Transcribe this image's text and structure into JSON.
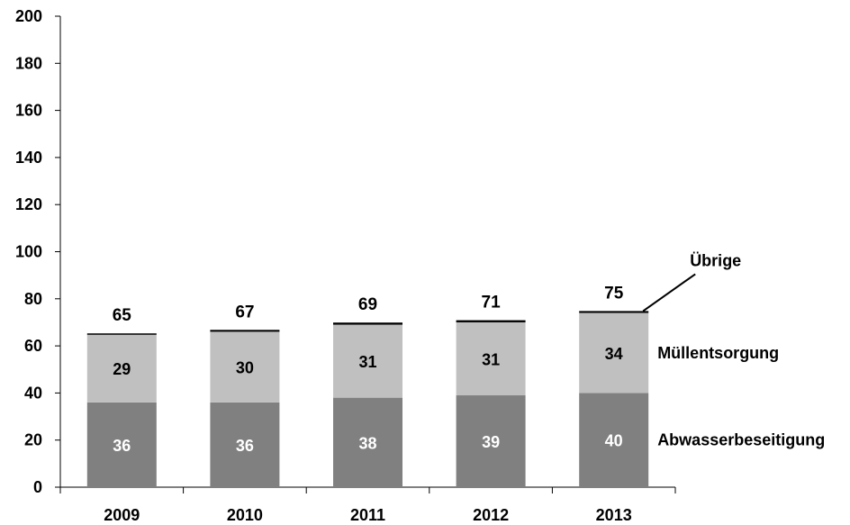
{
  "chart_data": {
    "type": "bar",
    "stacked": true,
    "categories": [
      "2009",
      "2010",
      "2011",
      "2012",
      "2013"
    ],
    "series": [
      {
        "name": "Abwasserbeseitigung",
        "values": [
          36,
          36,
          38,
          39,
          40
        ],
        "color": "#808080",
        "label_color": "#ffffff",
        "labels": [
          "36",
          "36",
          "38",
          "39",
          "40"
        ]
      },
      {
        "name": "Müllentsorgung",
        "values": [
          29,
          30,
          31,
          31,
          34
        ],
        "color": "#c0c0c0",
        "label_color": "#000000",
        "labels": [
          "29",
          "30",
          "31",
          "31",
          "34"
        ]
      },
      {
        "name": "Übrige",
        "values": [
          0.3,
          0.8,
          0.9,
          0.9,
          0.8
        ],
        "color": "#000000"
      }
    ],
    "totals": [
      "65",
      "67",
      "69",
      "71",
      "75"
    ],
    "ylim": [
      0,
      200
    ],
    "yticks": [
      "0",
      "20",
      "40",
      "60",
      "80",
      "100",
      "120",
      "140",
      "160",
      "180",
      "200"
    ],
    "grid": false,
    "legend": "direct labels at right of last bar"
  }
}
